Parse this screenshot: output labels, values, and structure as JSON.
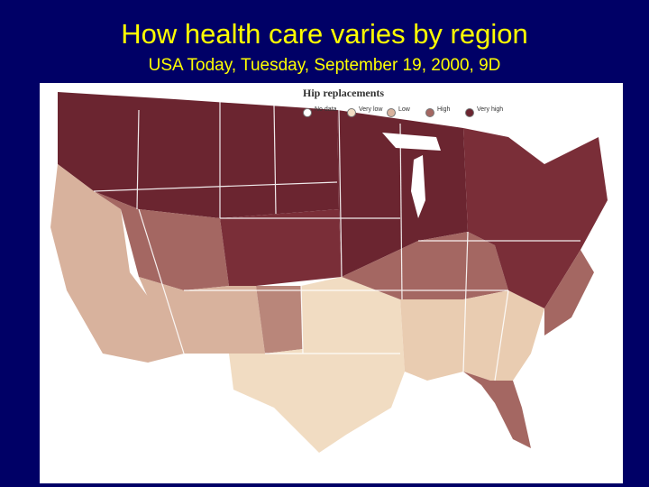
{
  "slide": {
    "title": "How health care varies by region",
    "subtitle": "USA Today, Tuesday, September 19, 2000, 9D"
  },
  "map": {
    "title": "Hip replacements",
    "legend": [
      {
        "label": "No data",
        "color": "#ffffff"
      },
      {
        "label": "Very low",
        "color": "#f1dcc2"
      },
      {
        "label": "Low",
        "color": "#d8b29d"
      },
      {
        "label": "High",
        "color": "#a46762"
      },
      {
        "label": "Very high",
        "color": "#6b2530"
      }
    ],
    "colors": {
      "panel_background": "#ffffff",
      "state_border": "#ffffff",
      "slide_background": "#000066",
      "title_text": "#ffff00"
    }
  }
}
